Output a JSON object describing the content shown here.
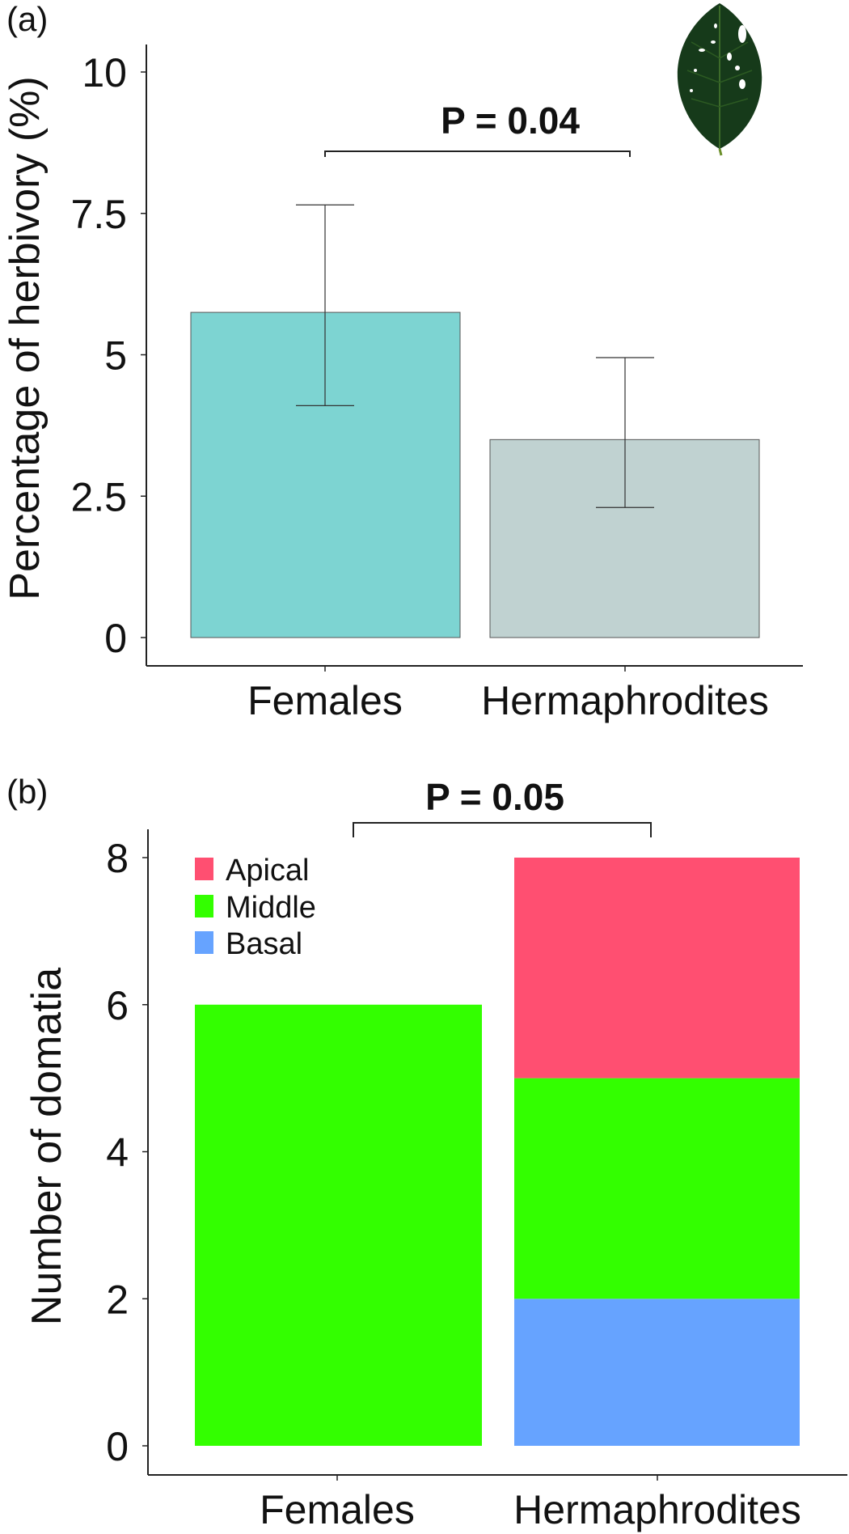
{
  "chart_data": [
    {
      "type": "bar",
      "panel_label": "(a)",
      "title": "",
      "xlabel": "",
      "ylabel": "Percentage of herbivory (%)",
      "ylim": [
        0,
        10
      ],
      "yticks": [
        "0",
        "2.5",
        "5",
        "7.5",
        "10"
      ],
      "ytick_values": [
        0,
        2.5,
        5,
        7.5,
        10
      ],
      "categories": [
        "Females",
        "Hermaphrodites"
      ],
      "values": [
        5.75,
        3.5
      ],
      "error_low": [
        4.1,
        2.3
      ],
      "error_high": [
        7.65,
        4.95
      ],
      "colors": [
        "#7dd4d2",
        "#c0d2d1"
      ],
      "significance": "P = 0.04",
      "grid": false,
      "inset_image": "herbivory-damaged-leaf"
    },
    {
      "type": "bar",
      "stacked": true,
      "panel_label": "(b)",
      "title": "",
      "xlabel": "",
      "ylabel": "Number of domatia",
      "ylim": [
        0,
        8
      ],
      "yticks": [
        "0",
        "2",
        "4",
        "6",
        "8"
      ],
      "ytick_values": [
        0,
        2,
        4,
        6,
        8
      ],
      "categories": [
        "Females",
        "Hermaphrodites"
      ],
      "series": [
        {
          "name": "Basal",
          "values": [
            0,
            2
          ],
          "color": "#66a3ff"
        },
        {
          "name": "Middle",
          "values": [
            6,
            3
          ],
          "color": "#33ff00"
        },
        {
          "name": "Apical",
          "values": [
            0,
            3
          ],
          "color": "#ff4f71"
        }
      ],
      "legend_order": [
        "Apical",
        "Middle",
        "Basal"
      ],
      "legend_position": "top-left",
      "significance": "P = 0.05",
      "grid": false
    }
  ]
}
